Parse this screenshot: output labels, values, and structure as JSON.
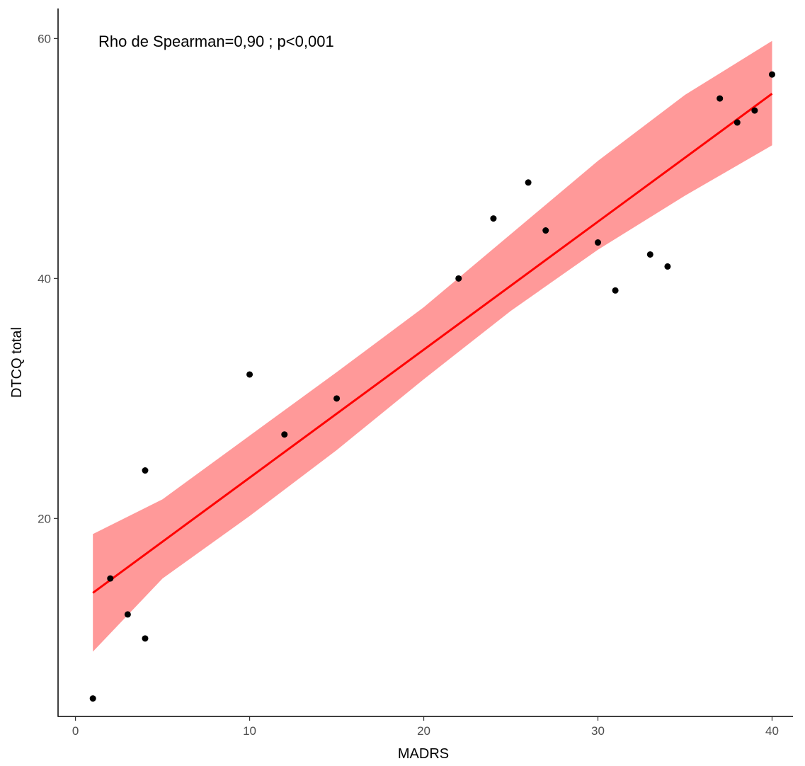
{
  "chart_data": {
    "type": "scatter",
    "annotation": "Rho de Spearman=0,90 ; p<0,001",
    "xlabel": "MADRS",
    "ylabel": "DTCQ total",
    "xlim": [
      -1,
      41.2
    ],
    "ylim": [
      3.5,
      62.5
    ],
    "x_ticks": [
      0,
      10,
      20,
      30,
      40
    ],
    "y_ticks": [
      20,
      40,
      60
    ],
    "grid": false,
    "points": [
      {
        "x": 1,
        "y": 5
      },
      {
        "x": 2,
        "y": 15
      },
      {
        "x": 3,
        "y": 12
      },
      {
        "x": 4,
        "y": 24
      },
      {
        "x": 4,
        "y": 10
      },
      {
        "x": 10,
        "y": 32
      },
      {
        "x": 12,
        "y": 27
      },
      {
        "x": 15,
        "y": 30
      },
      {
        "x": 22,
        "y": 40
      },
      {
        "x": 24,
        "y": 45
      },
      {
        "x": 26,
        "y": 48
      },
      {
        "x": 27,
        "y": 44
      },
      {
        "x": 30,
        "y": 43
      },
      {
        "x": 31,
        "y": 39
      },
      {
        "x": 33,
        "y": 42
      },
      {
        "x": 34,
        "y": 41
      },
      {
        "x": 37,
        "y": 55
      },
      {
        "x": 38,
        "y": 53
      },
      {
        "x": 39,
        "y": 54
      },
      {
        "x": 40,
        "y": 57
      }
    ],
    "fit_line": {
      "x": [
        1,
        40
      ],
      "y": [
        13.8,
        55.4
      ]
    },
    "confidence_band": {
      "x": [
        1,
        5,
        10,
        15,
        20,
        25,
        30,
        35,
        40
      ],
      "lower": [
        8.9,
        15.0,
        20.2,
        25.7,
        31.6,
        37.3,
        42.4,
        46.9,
        51.1
      ],
      "upper": [
        18.7,
        21.6,
        26.9,
        32.2,
        37.6,
        43.7,
        49.8,
        55.3,
        59.8
      ]
    },
    "colors": {
      "fit_line": "#ff0000",
      "band": "#ff9999",
      "points": "#000000",
      "axis": "#000000"
    }
  }
}
